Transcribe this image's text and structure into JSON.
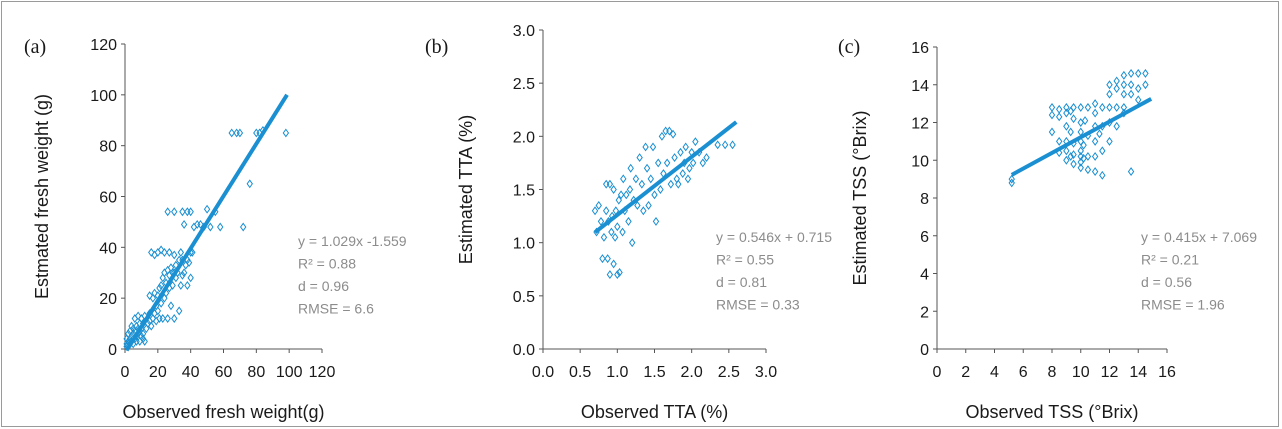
{
  "colors": {
    "marker": "#1a8fd1",
    "trend": "#1a8fd1",
    "axis": "#555555",
    "text": "#1a1a1a",
    "stats": "#8c8c8c"
  },
  "chart_data": [
    {
      "type": "scatter",
      "panel_label": "(a)",
      "xlabel": "Observed fresh weight(g)",
      "ylabel": "Estmated fresh weight (g)",
      "xlim": [
        0,
        120
      ],
      "ylim": [
        0,
        120
      ],
      "xticks": [
        "0",
        "20",
        "40",
        "60",
        "80",
        "100",
        "120"
      ],
      "yticks": [
        "0",
        "20",
        "40",
        "60",
        "80",
        "100",
        "120"
      ],
      "trendline": {
        "slope": 1.029,
        "intercept": -1.559,
        "x_range": [
          1,
          98.7
        ]
      },
      "stats": [
        "y = 1.029x -1.559",
        "R² = 0.88",
        "d = 0.96",
        "RMSE = 6.6"
      ],
      "points": [
        [
          1,
          1
        ],
        [
          1,
          2
        ],
        [
          2,
          1
        ],
        [
          2,
          3
        ],
        [
          3,
          2
        ],
        [
          3,
          4
        ],
        [
          4,
          3
        ],
        [
          4,
          5
        ],
        [
          5,
          2
        ],
        [
          5,
          6
        ],
        [
          6,
          4
        ],
        [
          6,
          7
        ],
        [
          7,
          5
        ],
        [
          7,
          9
        ],
        [
          8,
          6
        ],
        [
          8,
          8
        ],
        [
          9,
          7
        ],
        [
          9,
          10
        ],
        [
          10,
          5
        ],
        [
          10,
          8
        ],
        [
          11,
          6
        ],
        [
          11,
          10
        ],
        [
          12,
          3
        ],
        [
          12,
          13
        ],
        [
          2,
          6
        ],
        [
          4,
          9
        ],
        [
          6,
          12
        ],
        [
          8,
          13
        ],
        [
          5,
          8
        ],
        [
          7,
          3
        ],
        [
          3,
          7
        ],
        [
          1,
          4
        ],
        [
          9,
          3
        ],
        [
          10,
          12
        ],
        [
          11,
          4
        ],
        [
          13,
          8
        ],
        [
          14,
          10
        ],
        [
          15,
          11
        ],
        [
          15,
          14
        ],
        [
          15,
          21
        ],
        [
          16,
          9
        ],
        [
          17,
          12
        ],
        [
          17,
          20
        ],
        [
          18,
          14
        ],
        [
          18,
          22
        ],
        [
          19,
          11
        ],
        [
          19,
          17
        ],
        [
          20,
          15
        ],
        [
          20,
          21
        ],
        [
          21,
          12
        ],
        [
          21,
          24
        ],
        [
          22,
          18
        ],
        [
          22,
          25
        ],
        [
          23,
          12
        ],
        [
          23,
          28
        ],
        [
          24,
          20
        ],
        [
          24,
          30
        ],
        [
          25,
          22
        ],
        [
          25,
          26
        ],
        [
          26,
          12
        ],
        [
          26,
          31
        ],
        [
          27,
          24
        ],
        [
          27,
          29
        ],
        [
          28,
          17
        ],
        [
          28,
          32
        ],
        [
          29,
          25
        ],
        [
          29,
          30
        ],
        [
          30,
          12
        ],
        [
          30,
          30
        ],
        [
          31,
          28
        ],
        [
          31,
          33
        ],
        [
          32,
          30
        ],
        [
          33,
          15
        ],
        [
          33,
          35
        ],
        [
          34,
          25
        ],
        [
          34,
          38
        ],
        [
          35,
          29
        ],
        [
          35,
          35
        ],
        [
          36,
          30
        ],
        [
          37,
          33
        ],
        [
          38,
          35
        ],
        [
          38,
          25
        ],
        [
          39,
          34
        ],
        [
          40,
          28
        ],
        [
          40,
          38
        ],
        [
          16,
          38
        ],
        [
          18,
          37
        ],
        [
          20,
          38
        ],
        [
          22,
          39
        ],
        [
          24,
          38
        ],
        [
          27,
          38
        ],
        [
          30,
          37
        ],
        [
          26,
          54
        ],
        [
          30,
          54
        ],
        [
          35,
          54
        ],
        [
          38,
          54
        ],
        [
          40,
          54
        ],
        [
          36,
          49
        ],
        [
          41,
          38
        ],
        [
          42,
          48
        ],
        [
          44,
          49
        ],
        [
          46,
          49
        ],
        [
          48,
          48
        ],
        [
          50,
          55
        ],
        [
          52,
          48
        ],
        [
          55,
          54
        ],
        [
          58,
          48
        ],
        [
          65,
          85
        ],
        [
          68,
          85
        ],
        [
          70,
          85
        ],
        [
          72,
          48
        ],
        [
          76,
          65
        ],
        [
          80,
          85
        ],
        [
          82,
          85
        ],
        [
          84,
          86
        ],
        [
          98,
          85
        ]
      ]
    },
    {
      "type": "scatter",
      "panel_label": "(b)",
      "xlabel": "Observed TTA (%)",
      "ylabel": "Estimated TTA (%)",
      "xlim": [
        0,
        3
      ],
      "ylim": [
        0,
        3
      ],
      "xticks": [
        "0.0",
        "0.5",
        "1.0",
        "1.5",
        "2.0",
        "2.5",
        "3.0"
      ],
      "yticks": [
        "0.0",
        "0.5",
        "1.0",
        "1.5",
        "2.0",
        "2.5",
        "3.0"
      ],
      "trendline": {
        "slope": 0.546,
        "intercept": 0.715,
        "x_range": [
          0.7,
          2.6
        ]
      },
      "stats": [
        "y = 0.546x + 0.715",
        "R² = 0.55",
        "d = 0.81",
        "RMSE = 0.33"
      ],
      "points": [
        [
          0.7,
          1.3
        ],
        [
          0.72,
          1.1
        ],
        [
          0.75,
          1.35
        ],
        [
          0.78,
          1.2
        ],
        [
          0.8,
          0.85
        ],
        [
          0.82,
          1.05
        ],
        [
          0.85,
          1.55
        ],
        [
          0.85,
          1.3
        ],
        [
          0.87,
          0.85
        ],
        [
          0.88,
          1.2
        ],
        [
          0.9,
          0.7
        ],
        [
          0.9,
          1.55
        ],
        [
          0.92,
          1.1
        ],
        [
          0.93,
          1.25
        ],
        [
          0.95,
          0.8
        ],
        [
          0.95,
          1.5
        ],
        [
          0.97,
          1.05
        ],
        [
          0.98,
          1.3
        ],
        [
          1.0,
          0.7
        ],
        [
          1.0,
          1.15
        ],
        [
          1.02,
          1.4
        ],
        [
          1.03,
          0.72
        ],
        [
          1.05,
          1.45
        ],
        [
          1.07,
          1.1
        ],
        [
          1.08,
          1.6
        ],
        [
          1.1,
          1.3
        ],
        [
          1.12,
          1.45
        ],
        [
          1.15,
          1.2
        ],
        [
          1.17,
          1.5
        ],
        [
          1.18,
          1.7
        ],
        [
          1.2,
          1.0
        ],
        [
          1.22,
          1.4
        ],
        [
          1.25,
          1.6
        ],
        [
          1.27,
          1.35
        ],
        [
          1.3,
          1.8
        ],
        [
          1.33,
          1.55
        ],
        [
          1.35,
          1.3
        ],
        [
          1.38,
          1.9
        ],
        [
          1.4,
          1.7
        ],
        [
          1.42,
          1.35
        ],
        [
          1.45,
          1.6
        ],
        [
          1.48,
          1.9
        ],
        [
          1.5,
          1.45
        ],
        [
          1.52,
          1.2
        ],
        [
          1.55,
          1.75
        ],
        [
          1.58,
          1.5
        ],
        [
          1.6,
          2.0
        ],
        [
          1.62,
          1.65
        ],
        [
          1.65,
          2.05
        ],
        [
          1.67,
          1.75
        ],
        [
          1.7,
          2.05
        ],
        [
          1.72,
          1.55
        ],
        [
          1.75,
          2.02
        ],
        [
          1.77,
          1.8
        ],
        [
          1.8,
          1.6
        ],
        [
          1.82,
          1.55
        ],
        [
          1.85,
          1.85
        ],
        [
          1.88,
          1.65
        ],
        [
          1.9,
          1.75
        ],
        [
          1.92,
          1.9
        ],
        [
          1.95,
          1.6
        ],
        [
          1.97,
          1.7
        ],
        [
          2.0,
          1.85
        ],
        [
          2.02,
          1.75
        ],
        [
          2.05,
          1.95
        ],
        [
          2.1,
          1.85
        ],
        [
          2.15,
          1.75
        ],
        [
          2.2,
          1.8
        ],
        [
          2.35,
          1.92
        ],
        [
          2.45,
          1.92
        ],
        [
          2.55,
          1.92
        ]
      ]
    },
    {
      "type": "scatter",
      "panel_label": "(c)",
      "xlabel": "Observed TSS (°Brix)",
      "ylabel": "Estimated TSS (°Brix)",
      "xlim": [
        0,
        16
      ],
      "ylim": [
        0,
        16
      ],
      "xticks": [
        "0",
        "2",
        "4",
        "6",
        "8",
        "10",
        "12",
        "14",
        "16"
      ],
      "yticks": [
        "0",
        "2",
        "4",
        "6",
        "8",
        "10",
        "12",
        "14",
        "16"
      ],
      "trendline": {
        "slope": 0.415,
        "intercept": 7.069,
        "x_range": [
          5.2,
          14.9
        ]
      },
      "stats": [
        "y = 0.415x + 7.069",
        "R² = 0.21",
        "d = 0.56",
        "RMSE = 1.96"
      ],
      "points": [
        [
          5.2,
          8.8
        ],
        [
          5.2,
          9.0
        ],
        [
          8,
          12.8
        ],
        [
          8,
          12.4
        ],
        [
          8,
          11.5
        ],
        [
          8.5,
          12.7
        ],
        [
          8.5,
          12.3
        ],
        [
          8.5,
          11.0
        ],
        [
          8.5,
          10.4
        ],
        [
          9,
          12.8
        ],
        [
          9,
          12.5
        ],
        [
          9,
          11.8
        ],
        [
          9,
          11.0
        ],
        [
          9,
          10.5
        ],
        [
          9,
          10.0
        ],
        [
          9.3,
          12.6
        ],
        [
          9.3,
          11.5
        ],
        [
          9.3,
          10.2
        ],
        [
          9.5,
          12.8
        ],
        [
          9.5,
          12.2
        ],
        [
          9.5,
          10.9
        ],
        [
          9.5,
          10.3
        ],
        [
          9.5,
          9.8
        ],
        [
          10,
          12.8
        ],
        [
          10,
          12.0
        ],
        [
          10,
          11.5
        ],
        [
          10,
          11.0
        ],
        [
          10,
          10.5
        ],
        [
          10,
          10.2
        ],
        [
          10,
          9.9
        ],
        [
          10,
          9.6
        ],
        [
          10.2,
          10.8
        ],
        [
          10.2,
          10.1
        ],
        [
          10.3,
          12.1
        ],
        [
          10.5,
          12.8
        ],
        [
          10.5,
          11.3
        ],
        [
          10.5,
          10.2
        ],
        [
          10.5,
          9.5
        ],
        [
          11,
          13.0
        ],
        [
          11,
          12.5
        ],
        [
          11,
          11.8
        ],
        [
          11,
          11.0
        ],
        [
          11,
          10.2
        ],
        [
          11,
          9.4
        ],
        [
          11.3,
          11.4
        ],
        [
          11.5,
          12.8
        ],
        [
          11.5,
          11.8
        ],
        [
          11.5,
          10.5
        ],
        [
          11.5,
          9.2
        ],
        [
          12,
          14.0
        ],
        [
          12,
          13.5
        ],
        [
          12,
          12.8
        ],
        [
          12,
          12.0
        ],
        [
          12,
          11.0
        ],
        [
          12.5,
          14.2
        ],
        [
          12.5,
          13.8
        ],
        [
          12.5,
          12.8
        ],
        [
          12.5,
          11.8
        ],
        [
          13,
          14.5
        ],
        [
          13,
          14.0
        ],
        [
          13,
          13.5
        ],
        [
          13,
          12.8
        ],
        [
          13,
          12.5
        ],
        [
          13.5,
          14.6
        ],
        [
          13.5,
          14.0
        ],
        [
          13.5,
          13.5
        ],
        [
          13.5,
          9.4
        ],
        [
          14,
          14.6
        ],
        [
          14,
          13.8
        ],
        [
          14,
          13.2
        ],
        [
          14.5,
          14.6
        ],
        [
          14.5,
          14.0
        ]
      ]
    }
  ]
}
